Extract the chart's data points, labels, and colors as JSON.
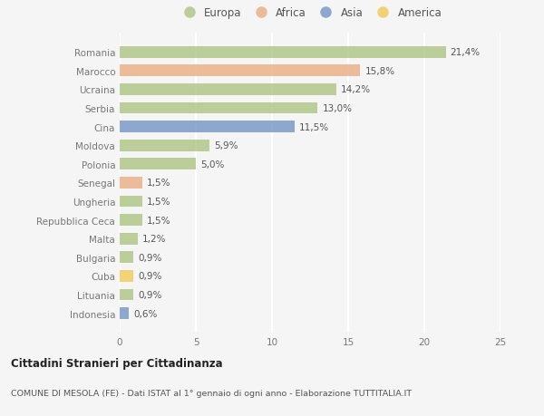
{
  "categories": [
    "Romania",
    "Marocco",
    "Ucraina",
    "Serbia",
    "Cina",
    "Moldova",
    "Polonia",
    "Senegal",
    "Ungheria",
    "Repubblica Ceca",
    "Malta",
    "Bulgaria",
    "Cuba",
    "Lituania",
    "Indonesia"
  ],
  "values": [
    21.4,
    15.8,
    14.2,
    13.0,
    11.5,
    5.9,
    5.0,
    1.5,
    1.5,
    1.5,
    1.2,
    0.9,
    0.9,
    0.9,
    0.6
  ],
  "labels": [
    "21,4%",
    "15,8%",
    "14,2%",
    "13,0%",
    "11,5%",
    "5,9%",
    "5,0%",
    "1,5%",
    "1,5%",
    "1,5%",
    "1,2%",
    "0,9%",
    "0,9%",
    "0,9%",
    "0,6%"
  ],
  "continents": [
    "Europa",
    "Africa",
    "Europa",
    "Europa",
    "Asia",
    "Europa",
    "Europa",
    "Africa",
    "Europa",
    "Europa",
    "Europa",
    "Europa",
    "America",
    "Europa",
    "Asia"
  ],
  "colors": {
    "Europa": "#a8c17c",
    "Africa": "#e8a87c",
    "Asia": "#6b8fbf",
    "America": "#f0c84a"
  },
  "legend_entries": [
    "Europa",
    "Africa",
    "Asia",
    "America"
  ],
  "legend_colors": [
    "#a8c17c",
    "#e8a87c",
    "#6b8fbf",
    "#f0c84a"
  ],
  "xlim": [
    0,
    25
  ],
  "xticks": [
    0,
    5,
    10,
    15,
    20,
    25
  ],
  "title": "Cittadini Stranieri per Cittadinanza",
  "subtitle": "COMUNE DI MESOLA (FE) - Dati ISTAT al 1° gennaio di ogni anno - Elaborazione TUTTITALIA.IT",
  "bg_color": "#f5f5f5",
  "bar_height": 0.62,
  "grid_color": "#ffffff",
  "label_fontsize": 7.5,
  "tick_fontsize": 7.5,
  "alpha": 0.75
}
